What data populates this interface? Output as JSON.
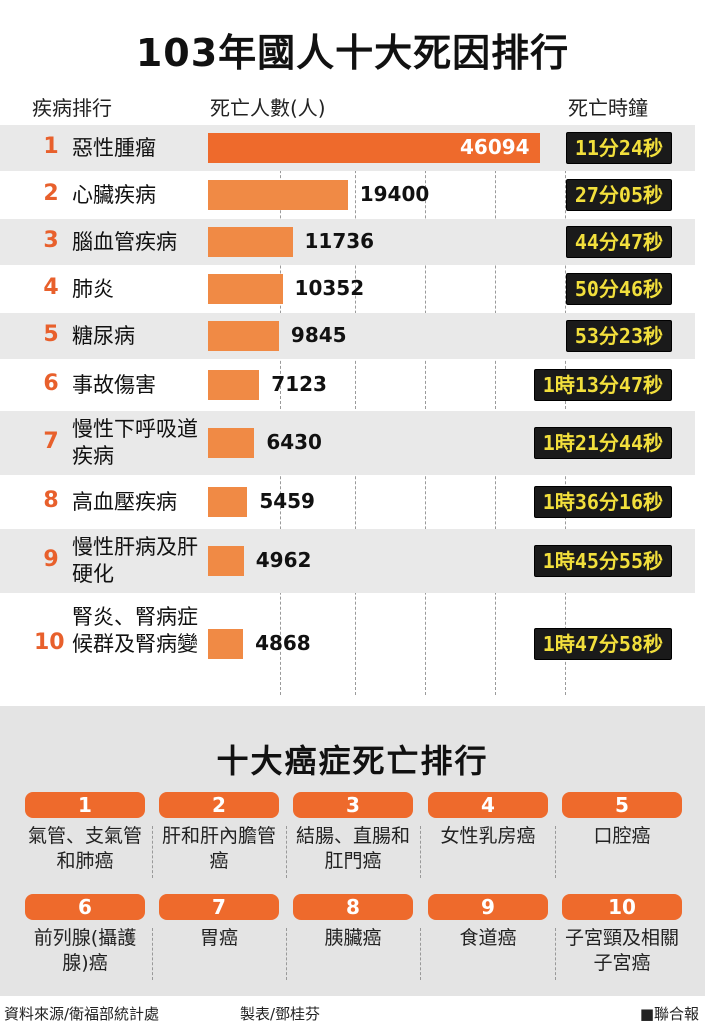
{
  "title": "103年國人十大死因排行",
  "headers": {
    "cause": "疾病排行",
    "deaths": "死亡人數(人)",
    "clock": "死亡時鐘"
  },
  "chart_data": {
    "type": "bar",
    "title": "103年國人十大死因排行",
    "ylabel": "死亡人數(人)",
    "categories": [
      "惡性腫瘤",
      "心臟疾病",
      "腦血管疾病",
      "肺炎",
      "糖尿病",
      "事故傷害",
      "慢性下呼吸道疾病",
      "高血壓疾病",
      "慢性肝病及肝硬化",
      "腎炎、腎病症候群及腎病變"
    ],
    "ranks": [
      "1",
      "2",
      "3",
      "4",
      "5",
      "6",
      "7",
      "8",
      "9",
      "10"
    ],
    "values": [
      46094,
      19400,
      11736,
      10352,
      9845,
      7123,
      6430,
      5459,
      4962,
      4868
    ],
    "value_labels": [
      "46094",
      "19400",
      "11736",
      "10352",
      "9845",
      "7123",
      "6430",
      "5459",
      "4962",
      "4868"
    ],
    "death_clock": [
      "11分24秒",
      "27分05秒",
      "44分47秒",
      "50分46秒",
      "53分23秒",
      "1時13分47秒",
      "1時21分44秒",
      "1時36分16秒",
      "1時45分55秒",
      "1時47分58秒"
    ],
    "ylim": [
      0,
      46094
    ],
    "grid": true
  },
  "cancer": {
    "title": "十大癌症死亡排行",
    "items": [
      {
        "rank": "1",
        "name": "氣管、支氣管和肺癌"
      },
      {
        "rank": "2",
        "name": "肝和肝內膽管癌"
      },
      {
        "rank": "3",
        "name": "結腸、直腸和肛門癌"
      },
      {
        "rank": "4",
        "name": "女性乳房癌"
      },
      {
        "rank": "5",
        "name": "口腔癌"
      },
      {
        "rank": "6",
        "name": "前列腺(攝護腺)癌"
      },
      {
        "rank": "7",
        "name": "胃癌"
      },
      {
        "rank": "8",
        "name": "胰臟癌"
      },
      {
        "rank": "9",
        "name": "食道癌"
      },
      {
        "rank": "10",
        "name": "子宮頸及相關子宮癌"
      }
    ]
  },
  "footer": {
    "source": "資料來源/衛福部統計處",
    "maker": "製表/鄧桂芬",
    "brand": "■聯合報"
  },
  "colors": {
    "accent": "#ee6a2c",
    "bar": "#f08a45",
    "clock_text": "#f2df3c"
  }
}
